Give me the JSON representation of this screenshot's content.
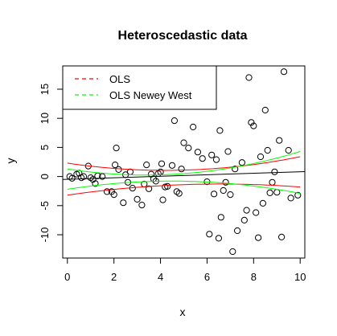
{
  "chart_data": {
    "type": "scatter",
    "title": "Heteroscedastic data",
    "xlabel": "x",
    "ylabel": "y",
    "xlim": [
      -0.2,
      10.2
    ],
    "ylim": [
      -14,
      19
    ],
    "xticks": [
      0,
      2,
      4,
      6,
      8,
      10
    ],
    "yticks": [
      -10,
      -5,
      0,
      5,
      10,
      15
    ],
    "grid": false,
    "legend": {
      "position": "top-left",
      "entries": [
        {
          "label": "OLS",
          "color": "#ff0000",
          "style": "dashed"
        },
        {
          "label": "OLS Newey West",
          "color": "#00ff00",
          "style": "dashed"
        }
      ]
    },
    "series": [
      {
        "kind": "points",
        "color": "#000000",
        "x": [
          0.1,
          0.2,
          0.4,
          0.5,
          0.6,
          0.7,
          0.9,
          1.0,
          1.1,
          1.2,
          1.3,
          1.5,
          1.7,
          1.9,
          2.0,
          2.05,
          2.1,
          2.2,
          2.4,
          2.5,
          2.6,
          2.7,
          2.8,
          3.0,
          3.2,
          3.3,
          3.4,
          3.5,
          3.6,
          3.7,
          3.8,
          3.9,
          4.0,
          4.05,
          4.1,
          4.2,
          4.3,
          4.5,
          4.6,
          4.7,
          4.8,
          4.9,
          5.0,
          5.2,
          5.4,
          5.6,
          5.8,
          6.0,
          6.1,
          6.2,
          6.3,
          6.4,
          6.5,
          6.55,
          6.6,
          6.7,
          6.8,
          6.9,
          7.0,
          7.1,
          7.2,
          7.3,
          7.5,
          7.6,
          7.7,
          7.8,
          7.9,
          8.0,
          8.1,
          8.2,
          8.3,
          8.4,
          8.5,
          8.6,
          8.7,
          8.8,
          8.9,
          9.0,
          9.1,
          9.2,
          9.3,
          9.5,
          9.6,
          9.9
        ],
        "y": [
          0.0,
          -0.3,
          0.4,
          0.6,
          -0.2,
          0.0,
          1.8,
          -0.2,
          -0.5,
          -1.2,
          0.1,
          0.0,
          -2.6,
          -2.6,
          -3.1,
          2.0,
          4.9,
          1.2,
          -4.5,
          0.3,
          -1.0,
          0.8,
          -2.0,
          -3.9,
          -4.9,
          -1.3,
          2.0,
          -2.1,
          0.4,
          -0.4,
          -0.8,
          0.5,
          0.8,
          2.2,
          -4.0,
          -1.8,
          -1.7,
          1.9,
          9.6,
          -2.6,
          -2.9,
          1.3,
          5.8,
          4.9,
          8.5,
          4.2,
          3.1,
          -0.9,
          -9.9,
          3.7,
          -3.0,
          2.9,
          -10.6,
          7.9,
          -7.0,
          -2.4,
          -1.0,
          4.3,
          -3.1,
          -12.9,
          1.3,
          -9.3,
          2.4,
          -7.5,
          -5.8,
          17.0,
          9.3,
          8.7,
          -6.2,
          -10.5,
          3.4,
          -4.6,
          11.4,
          4.5,
          -2.8,
          -1.0,
          0.8,
          -2.7,
          6.2,
          -10.4,
          18.0,
          4.5,
          -3.7,
          -3.2
        ]
      },
      {
        "kind": "line",
        "name": "",
        "color": "#000000",
        "x": [
          -0.2,
          10.2
        ],
        "y": [
          -0.5,
          0.85
        ]
      },
      {
        "kind": "band",
        "name": "",
        "color": "#ff0000",
        "x": [
          0,
          5,
          10
        ],
        "upper": [
          2.3,
          1.1,
          3.4
        ],
        "lower": [
          -3.2,
          -1.4,
          -1.8
        ]
      },
      {
        "kind": "band",
        "name": "",
        "color": "#00ff00",
        "x": [
          0,
          5,
          10
        ],
        "upper": [
          1.3,
          0.5,
          4.3
        ],
        "lower": [
          -2.2,
          -0.8,
          -2.9
        ]
      }
    ]
  }
}
